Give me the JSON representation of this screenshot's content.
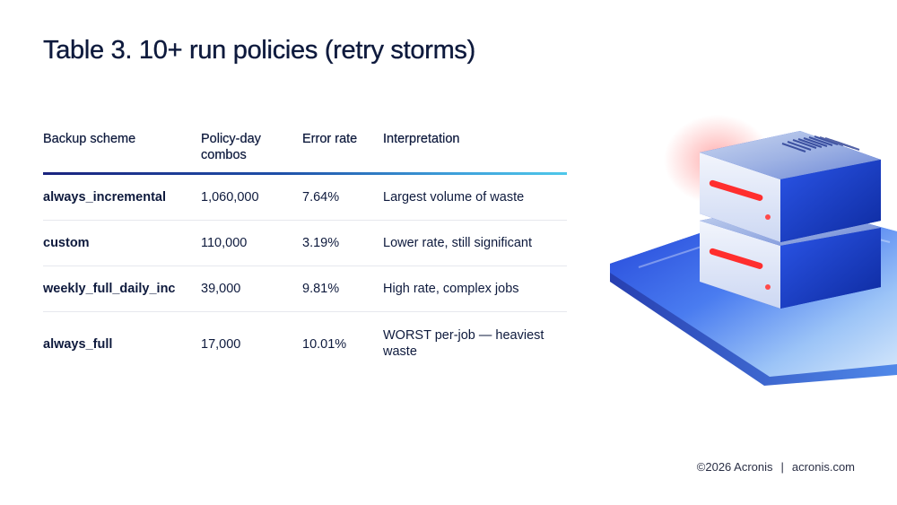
{
  "title": "Table 3. 10+ run policies (retry storms)",
  "table": {
    "headers": [
      "Backup scheme",
      "Policy-day combos",
      "Error rate",
      "Interpretation"
    ],
    "rows": [
      [
        "always_incremental",
        "1,060,000",
        "7.64%",
        "Largest volume of waste"
      ],
      [
        "custom",
        "110,000",
        "3.19%",
        "Lower rate, still significant"
      ],
      [
        "weekly_full_daily_inc",
        "39,000",
        "9.81%",
        "High rate, complex jobs"
      ],
      [
        "always_full",
        "17,000",
        "10.01%",
        "WORST per-job — heaviest waste"
      ]
    ]
  },
  "footer": {
    "copyright": "©2026 Acronis",
    "separator": "|",
    "site": "acronis.com"
  },
  "colors": {
    "text": "#0e1a3d",
    "accent_dark": "#1a237e",
    "accent_light": "#4fc8ea",
    "device_blue": "#1e4fd8",
    "indicator_red": "#ff3b3b"
  },
  "illustration": "server-stack-icon"
}
